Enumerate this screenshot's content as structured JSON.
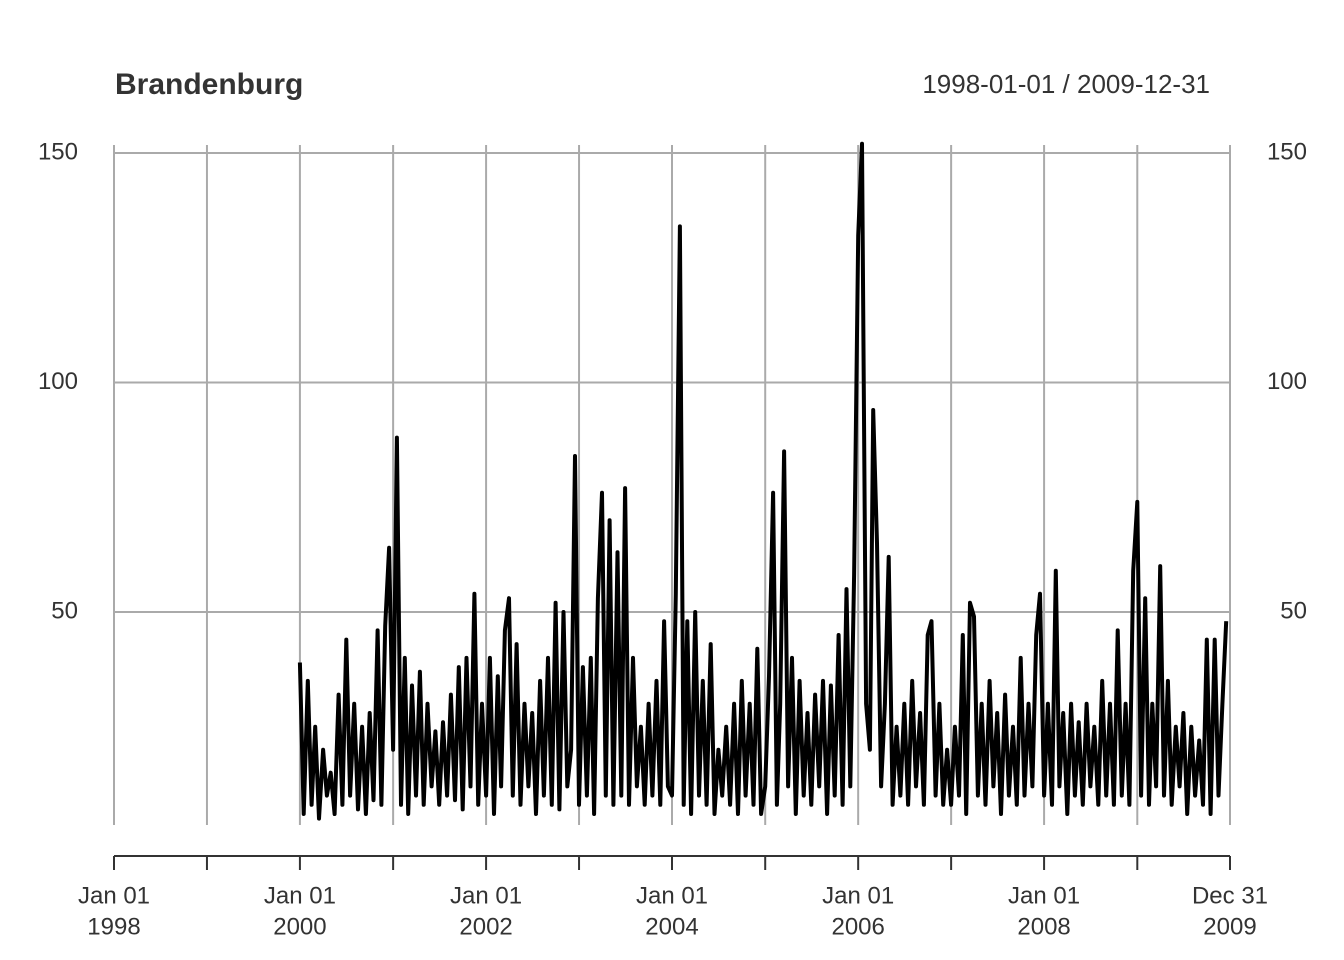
{
  "chart_data": {
    "type": "line",
    "title": "Brandenburg",
    "subtitle": "1998-01-01 / 2009-12-31",
    "xlim": [
      "1998-01-01",
      "2009-12-31"
    ],
    "ylim": [
      3.6,
      150
    ],
    "yticks": [
      50,
      100,
      150
    ],
    "grid": true,
    "xticks": [
      {
        "value": "1998-01-01",
        "label": [
          "Jan 01",
          "1998"
        ]
      },
      {
        "value": "1999-01-01",
        "label": null
      },
      {
        "value": "2000-01-01",
        "label": [
          "Jan 01",
          "2000"
        ]
      },
      {
        "value": "2001-01-01",
        "label": null
      },
      {
        "value": "2002-01-01",
        "label": [
          "Jan 01",
          "2002"
        ]
      },
      {
        "value": "2003-01-01",
        "label": null
      },
      {
        "value": "2004-01-01",
        "label": [
          "Jan 01",
          "2004"
        ]
      },
      {
        "value": "2005-01-01",
        "label": null
      },
      {
        "value": "2006-01-01",
        "label": [
          "Jan 01",
          "2006"
        ]
      },
      {
        "value": "2007-01-01",
        "label": null
      },
      {
        "value": "2008-01-01",
        "label": [
          "Jan 01",
          "2008"
        ]
      },
      {
        "value": "2009-01-01",
        "label": null
      },
      {
        "value": "2009-12-31",
        "label": [
          "Dec 31",
          "2009"
        ]
      }
    ],
    "x": [
      "2000-01-01",
      "2000-01-16",
      "2000-02-01",
      "2000-02-16",
      "2000-03-01",
      "2000-03-16",
      "2000-04-01",
      "2000-04-16",
      "2000-05-01",
      "2000-05-16",
      "2000-06-01",
      "2000-06-16",
      "2000-07-01",
      "2000-07-16",
      "2000-08-01",
      "2000-08-16",
      "2000-09-01",
      "2000-09-16",
      "2000-10-01",
      "2000-10-16",
      "2000-11-01",
      "2000-11-16",
      "2000-12-01",
      "2000-12-16",
      "2001-01-01",
      "2001-01-16",
      "2001-02-01",
      "2001-02-16",
      "2001-03-01",
      "2001-03-16",
      "2001-04-01",
      "2001-04-16",
      "2001-05-01",
      "2001-05-16",
      "2001-06-01",
      "2001-06-16",
      "2001-07-01",
      "2001-07-16",
      "2001-08-01",
      "2001-08-16",
      "2001-09-01",
      "2001-09-16",
      "2001-10-01",
      "2001-10-16",
      "2001-11-01",
      "2001-11-16",
      "2001-12-01",
      "2001-12-16",
      "2002-01-01",
      "2002-01-16",
      "2002-02-01",
      "2002-02-16",
      "2002-03-01",
      "2002-03-16",
      "2002-04-01",
      "2002-04-16",
      "2002-05-01",
      "2002-05-16",
      "2002-06-01",
      "2002-06-16",
      "2002-07-01",
      "2002-07-16",
      "2002-08-01",
      "2002-08-16",
      "2002-09-01",
      "2002-09-16",
      "2002-10-01",
      "2002-10-16",
      "2002-11-01",
      "2002-11-16",
      "2002-12-01",
      "2002-12-16",
      "2003-01-01",
      "2003-01-16",
      "2003-02-01",
      "2003-02-16",
      "2003-03-01",
      "2003-03-16",
      "2003-04-01",
      "2003-04-16",
      "2003-05-01",
      "2003-05-16",
      "2003-06-01",
      "2003-06-16",
      "2003-07-01",
      "2003-07-16",
      "2003-08-01",
      "2003-08-16",
      "2003-09-01",
      "2003-09-16",
      "2003-10-01",
      "2003-10-16",
      "2003-11-01",
      "2003-11-16",
      "2003-12-01",
      "2003-12-16",
      "2004-01-01",
      "2004-01-16",
      "2004-02-01",
      "2004-02-16",
      "2004-03-01",
      "2004-03-16",
      "2004-04-01",
      "2004-04-16",
      "2004-05-01",
      "2004-05-16",
      "2004-06-01",
      "2004-06-16",
      "2004-07-01",
      "2004-07-16",
      "2004-08-01",
      "2004-08-16",
      "2004-09-01",
      "2004-09-16",
      "2004-10-01",
      "2004-10-16",
      "2004-11-01",
      "2004-11-16",
      "2004-12-01",
      "2004-12-16",
      "2005-01-01",
      "2005-01-16",
      "2005-02-01",
      "2005-02-16",
      "2005-03-01",
      "2005-03-16",
      "2005-04-01",
      "2005-04-16",
      "2005-05-01",
      "2005-05-16",
      "2005-06-01",
      "2005-06-16",
      "2005-07-01",
      "2005-07-16",
      "2005-08-01",
      "2005-08-16",
      "2005-09-01",
      "2005-09-16",
      "2005-10-01",
      "2005-10-16",
      "2005-11-01",
      "2005-11-16",
      "2005-12-01",
      "2005-12-16",
      "2006-01-01",
      "2006-01-16",
      "2006-02-01",
      "2006-02-16",
      "2006-03-01",
      "2006-03-16",
      "2006-04-01",
      "2006-04-16",
      "2006-05-01",
      "2006-05-16",
      "2006-06-01",
      "2006-06-16",
      "2006-07-01",
      "2006-07-16",
      "2006-08-01",
      "2006-08-16",
      "2006-09-01",
      "2006-09-16",
      "2006-10-01",
      "2006-10-16",
      "2006-11-01",
      "2006-11-16",
      "2006-12-01",
      "2006-12-16",
      "2007-01-01",
      "2007-01-16",
      "2007-02-01",
      "2007-02-16",
      "2007-03-01",
      "2007-03-16",
      "2007-04-01",
      "2007-04-16",
      "2007-05-01",
      "2007-05-16",
      "2007-06-01",
      "2007-06-16",
      "2007-07-01",
      "2007-07-16",
      "2007-08-01",
      "2007-08-16",
      "2007-09-01",
      "2007-09-16",
      "2007-10-01",
      "2007-10-16",
      "2007-11-01",
      "2007-11-16",
      "2007-12-01",
      "2007-12-16",
      "2008-01-01",
      "2008-01-16",
      "2008-02-01",
      "2008-02-16",
      "2008-03-01",
      "2008-03-16",
      "2008-04-01",
      "2008-04-16",
      "2008-05-01",
      "2008-05-16",
      "2008-06-01",
      "2008-06-16",
      "2008-07-01",
      "2008-07-16",
      "2008-08-01",
      "2008-08-16",
      "2008-09-01",
      "2008-09-16",
      "2008-10-01",
      "2008-10-16",
      "2008-11-01",
      "2008-11-16",
      "2008-12-01",
      "2008-12-16",
      "2009-01-01",
      "2009-01-16",
      "2009-02-01",
      "2009-02-16",
      "2009-03-01",
      "2009-03-16",
      "2009-04-01",
      "2009-04-16",
      "2009-05-01",
      "2009-05-16",
      "2009-06-01",
      "2009-06-16",
      "2009-07-01",
      "2009-07-16",
      "2009-08-01",
      "2009-08-16",
      "2009-09-01",
      "2009-09-16",
      "2009-10-01",
      "2009-10-16",
      "2009-11-01",
      "2009-11-16",
      "2009-12-01",
      "2009-12-16"
    ],
    "series": [
      {
        "color": "#000000",
        "values": [
          39,
          6,
          35,
          8,
          25,
          5,
          20,
          10,
          15,
          6,
          32,
          8,
          44,
          10,
          30,
          7,
          25,
          6,
          28,
          9,
          46,
          8,
          47,
          64,
          20,
          88,
          8,
          40,
          6,
          34,
          10,
          37,
          8,
          30,
          12,
          24,
          8,
          26,
          10,
          32,
          9,
          38,
          7,
          40,
          12,
          54,
          8,
          30,
          10,
          40,
          6,
          36,
          12,
          46,
          53,
          10,
          43,
          8,
          30,
          12,
          28,
          6,
          35,
          10,
          40,
          8,
          52,
          7,
          50,
          12,
          20,
          84,
          8,
          38,
          10,
          40,
          6,
          53,
          76,
          10,
          70,
          8,
          63,
          10,
          77,
          8,
          40,
          12,
          25,
          8,
          30,
          10,
          35,
          8,
          48,
          12,
          10,
          54,
          134,
          8,
          48,
          6,
          50,
          10,
          35,
          8,
          43,
          6,
          20,
          10,
          25,
          8,
          30,
          6,
          35,
          10,
          30,
          8,
          42,
          6,
          12,
          36,
          76,
          8,
          30,
          85,
          12,
          40,
          6,
          35,
          10,
          28,
          8,
          32,
          12,
          35,
          6,
          34,
          10,
          45,
          8,
          55,
          12,
          58,
          132,
          152,
          30,
          20,
          94,
          65,
          12,
          30,
          62,
          8,
          25,
          10,
          30,
          8,
          35,
          12,
          28,
          8,
          45,
          48,
          10,
          30,
          8,
          20,
          8,
          25,
          10,
          45,
          6,
          52,
          49,
          10,
          30,
          8,
          35,
          12,
          28,
          6,
          32,
          10,
          25,
          8,
          40,
          10,
          30,
          12,
          45,
          54,
          10,
          30,
          8,
          59,
          12,
          28,
          6,
          30,
          10,
          26,
          8,
          30,
          12,
          25,
          8,
          35,
          10,
          30,
          8,
          46,
          10,
          30,
          8,
          59,
          74,
          10,
          53,
          8,
          30,
          12,
          60,
          10,
          35,
          8,
          25,
          12,
          28,
          6,
          25,
          10,
          22,
          8,
          44,
          6,
          44,
          10,
          30,
          48
        ]
      }
    ]
  }
}
